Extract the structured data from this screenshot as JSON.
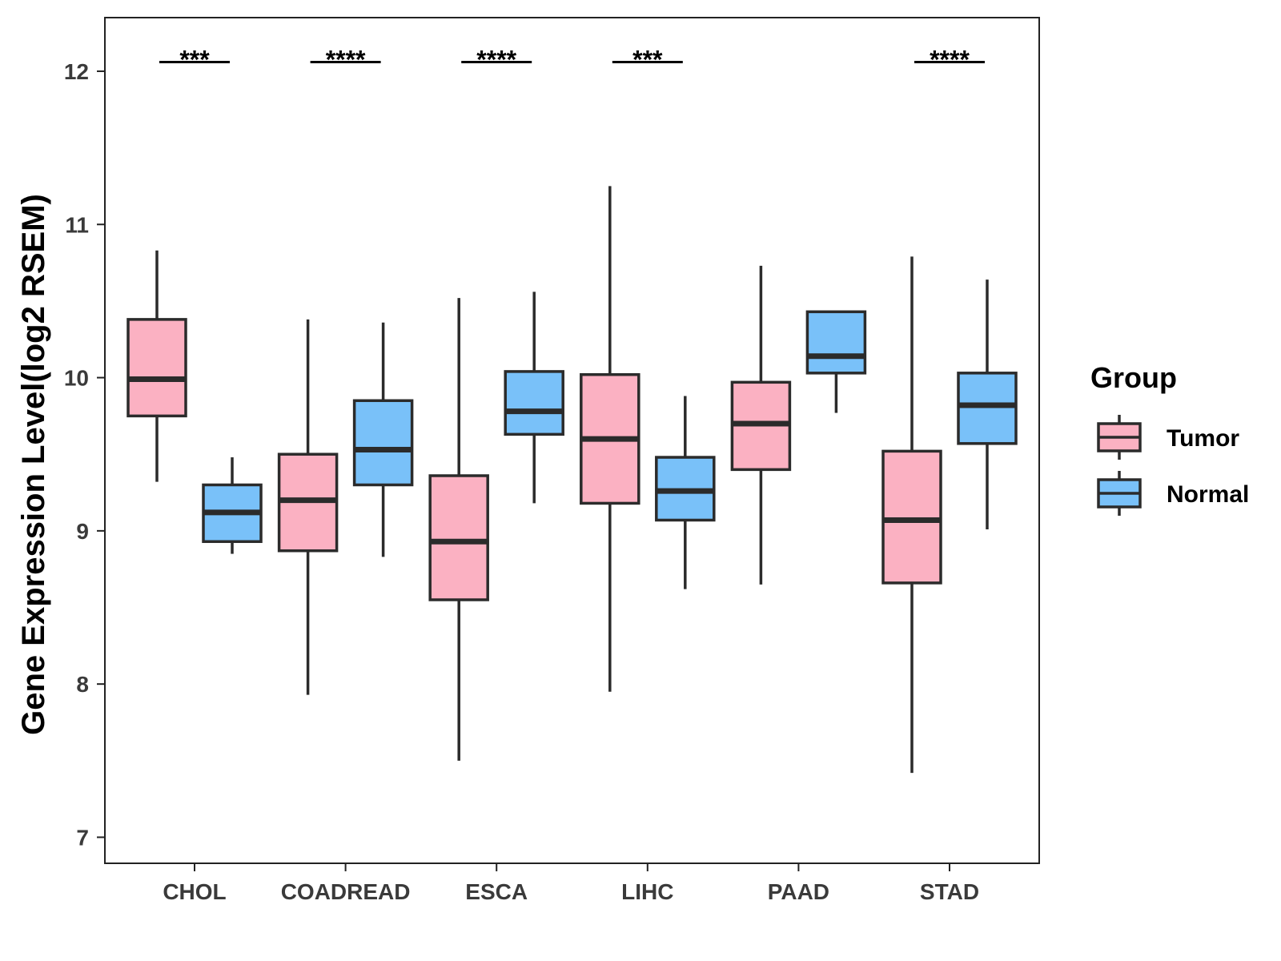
{
  "chart_data": {
    "type": "boxplot",
    "title": "",
    "xlabel": "",
    "ylabel": "Gene Expression Level(log2 RSEM)",
    "ylim": [
      6.83,
      12.35
    ],
    "yticks": [
      7,
      8,
      9,
      10,
      11,
      12
    ],
    "grid": false,
    "categories": [
      "CHOL",
      "COADREAD",
      "ESCA",
      "LIHC",
      "PAAD",
      "STAD"
    ],
    "legend": {
      "title": "Group",
      "position": "right",
      "entries": [
        "Tumor",
        "Normal"
      ]
    },
    "series": [
      {
        "name": "Tumor",
        "color": "#FBB1C2",
        "boxes": [
          {
            "min": 9.32,
            "q1": 9.75,
            "median": 9.99,
            "q3": 10.38,
            "max": 10.83
          },
          {
            "min": 7.93,
            "q1": 8.87,
            "median": 9.2,
            "q3": 9.5,
            "max": 10.38
          },
          {
            "min": 7.5,
            "q1": 8.55,
            "median": 8.93,
            "q3": 9.36,
            "max": 10.52
          },
          {
            "min": 7.95,
            "q1": 9.18,
            "median": 9.6,
            "q3": 10.02,
            "max": 11.25
          },
          {
            "min": 8.65,
            "q1": 9.4,
            "median": 9.7,
            "q3": 9.97,
            "max": 10.73
          },
          {
            "min": 7.42,
            "q1": 8.66,
            "median": 9.07,
            "q3": 9.52,
            "max": 10.79
          }
        ]
      },
      {
        "name": "Normal",
        "color": "#79C1F9",
        "boxes": [
          {
            "min": 8.85,
            "q1": 8.93,
            "median": 9.12,
            "q3": 9.3,
            "max": 9.48
          },
          {
            "min": 8.83,
            "q1": 9.3,
            "median": 9.53,
            "q3": 9.85,
            "max": 10.36
          },
          {
            "min": 9.18,
            "q1": 9.63,
            "median": 9.78,
            "q3": 10.04,
            "max": 10.56
          },
          {
            "min": 8.62,
            "q1": 9.07,
            "median": 9.26,
            "q3": 9.48,
            "max": 9.88
          },
          {
            "min": 9.77,
            "q1": 10.03,
            "median": 10.14,
            "q3": 10.43,
            "max": 10.43
          },
          {
            "min": 9.01,
            "q1": 9.57,
            "median": 9.82,
            "q3": 10.03,
            "max": 10.64
          }
        ]
      }
    ],
    "annotations": [
      {
        "category": "CHOL",
        "label": "***"
      },
      {
        "category": "COADREAD",
        "label": "****"
      },
      {
        "category": "ESCA",
        "label": "****"
      },
      {
        "category": "LIHC",
        "label": "***"
      },
      {
        "category": "PAAD",
        "label": ""
      },
      {
        "category": "STAD",
        "label": "****"
      }
    ]
  }
}
